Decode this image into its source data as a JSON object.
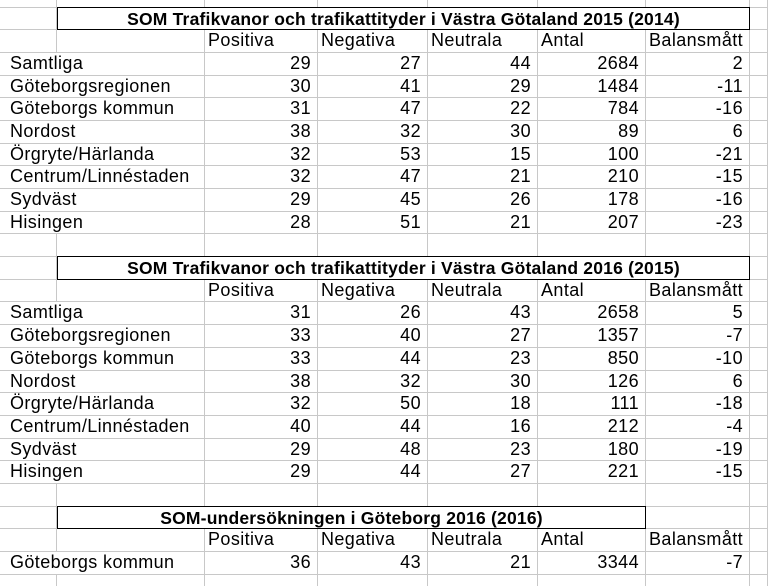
{
  "colors": {
    "background": "#ffffff",
    "gridline": "#c8c8c8",
    "title_border": "#000000",
    "text": "#000000"
  },
  "column_headers": [
    "Positiva",
    "Negativa",
    "Neutrala",
    "Antal",
    "Balansmått"
  ],
  "tables": [
    {
      "title": "SOM Trafikvanor och trafikattityder i Västra Götaland 2015 (2014)",
      "rows": [
        {
          "label": "Samtliga",
          "values": [
            29,
            27,
            44,
            2684,
            2
          ]
        },
        {
          "label": "Göteborgsregionen",
          "values": [
            30,
            41,
            29,
            1484,
            -11
          ]
        },
        {
          "label": "Göteborgs kommun",
          "values": [
            31,
            47,
            22,
            784,
            -16
          ]
        },
        {
          "label": "Nordost",
          "values": [
            38,
            32,
            30,
            89,
            6
          ]
        },
        {
          "label": "Örgryte/Härlanda",
          "values": [
            32,
            53,
            15,
            100,
            -21
          ]
        },
        {
          "label": "Centrum/Linnéstaden",
          "values": [
            32,
            47,
            21,
            210,
            -15
          ]
        },
        {
          "label": "Sydväst",
          "values": [
            29,
            45,
            26,
            178,
            -16
          ]
        },
        {
          "label": "Hisingen",
          "values": [
            28,
            51,
            21,
            207,
            -23
          ]
        }
      ]
    },
    {
      "title": "SOM Trafikvanor och trafikattityder i Västra Götaland 2016 (2015)",
      "rows": [
        {
          "label": "Samtliga",
          "values": [
            31,
            26,
            43,
            2658,
            5
          ]
        },
        {
          "label": "Göteborgsregionen",
          "values": [
            33,
            40,
            27,
            1357,
            -7
          ]
        },
        {
          "label": "Göteborgs kommun",
          "values": [
            33,
            44,
            23,
            850,
            -10
          ]
        },
        {
          "label": "Nordost",
          "values": [
            38,
            32,
            30,
            126,
            6
          ]
        },
        {
          "label": "Örgryte/Härlanda",
          "values": [
            32,
            50,
            18,
            111,
            -18
          ]
        },
        {
          "label": "Centrum/Linnéstaden",
          "values": [
            40,
            44,
            16,
            212,
            -4
          ]
        },
        {
          "label": "Sydväst",
          "values": [
            29,
            48,
            23,
            180,
            -19
          ]
        },
        {
          "label": "Hisingen",
          "values": [
            29,
            44,
            27,
            221,
            -15
          ]
        }
      ]
    },
    {
      "title": "SOM-undersökningen i Göteborg 2016 (2016)",
      "rows": [
        {
          "label": "Göteborgs kommun",
          "values": [
            36,
            43,
            21,
            3344,
            -7
          ]
        }
      ]
    }
  ]
}
